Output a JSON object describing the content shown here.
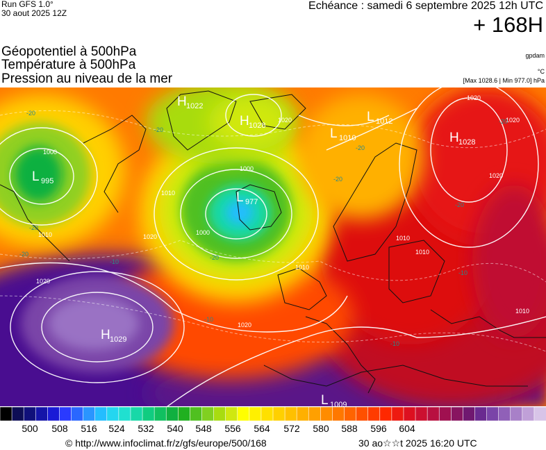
{
  "header": {
    "run": "Run GFS 1.0°",
    "run_date": "30 aout 2025 12Z",
    "echeance": "Echéance : samedi 6 septembre 2025 12h UTC",
    "lead": "+ 168H",
    "title_lines": [
      "Géopotentiel à 500hPa",
      "Température à 500hPa",
      "Pression au niveau de la mer"
    ],
    "credit": "gpdam",
    "unit_temp": "°C",
    "maxmin": "[Max 1028.6 | Min 977.0] hPa"
  },
  "map": {
    "pressure_centers": [
      {
        "type": "L",
        "value": "995"
      },
      {
        "type": "H",
        "value": "1022"
      },
      {
        "type": "H",
        "value": "1028"
      },
      {
        "type": "L",
        "value": "1012"
      },
      {
        "type": "L",
        "value": "1010"
      },
      {
        "type": "H",
        "value": "1028"
      },
      {
        "type": "L",
        "value": "977"
      },
      {
        "type": "H",
        "value": "1029"
      },
      {
        "type": "L",
        "value": "1009"
      }
    ],
    "isobar_labels": [
      "1000",
      "1010",
      "1020",
      "1000",
      "1010",
      "1020",
      "1020",
      "1020",
      "1010",
      "1020",
      "1010",
      "1010",
      "1020",
      "1020",
      "1010",
      "1000"
    ],
    "isotherm_labels": [
      "-20",
      "-20",
      "-20",
      "-20",
      "-20",
      "-20",
      "-20",
      "-20",
      "-10",
      "-10",
      "-10",
      "-10",
      "-20"
    ]
  },
  "colorbar": {
    "colors": [
      "#000000",
      "#0d0d55",
      "#10107a",
      "#1414a8",
      "#1a1ad6",
      "#2a3aff",
      "#2a67ff",
      "#2a95ff",
      "#24bdff",
      "#24d6f0",
      "#20e0d0",
      "#18d8a8",
      "#10cc80",
      "#10c060",
      "#10b040",
      "#20b020",
      "#50c020",
      "#80d020",
      "#a8dc10",
      "#d0e810",
      "#ffff00",
      "#fff000",
      "#ffe000",
      "#ffd000",
      "#ffc000",
      "#ffb000",
      "#ffa000",
      "#ff8c00",
      "#ff7800",
      "#ff6400",
      "#ff5000",
      "#ff3c00",
      "#ff2800",
      "#ee1a10",
      "#dd1020",
      "#cc1030",
      "#b81040",
      "#a01050",
      "#881460",
      "#701870",
      "#6a2a90",
      "#7a44a8",
      "#9060b8",
      "#a880c8",
      "#c0a0d8",
      "#d8c4e8"
    ],
    "labels": [
      "500",
      "508",
      "516",
      "524",
      "532",
      "540",
      "548",
      "556",
      "564",
      "572",
      "580",
      "588",
      "596",
      "604"
    ]
  },
  "footer": {
    "source": "© http://www.infoclimat.fr/z/gfs/europe/500/168",
    "generated": "30 ao☆☆t 2025 16:20 UTC"
  }
}
